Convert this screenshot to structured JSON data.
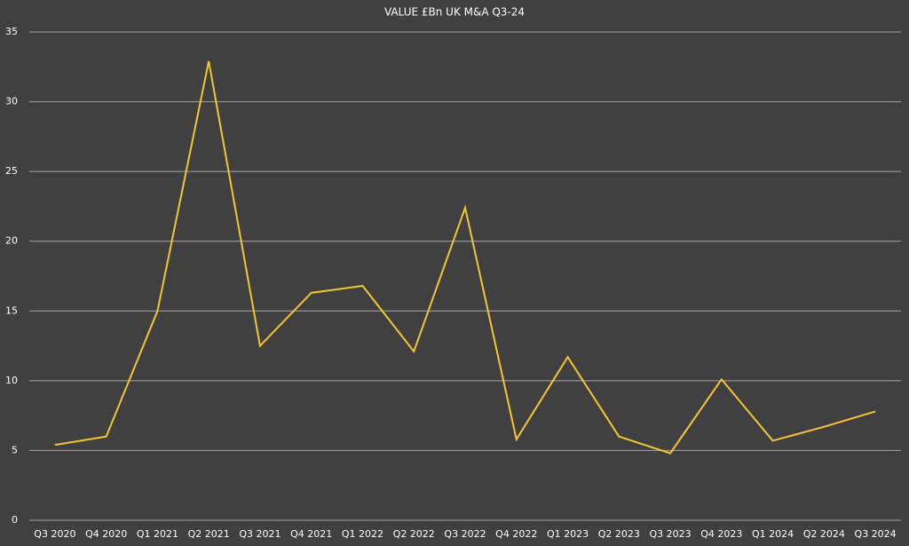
{
  "chart_data": {
    "type": "line",
    "title": "VALUE £Bn UK M&A Q3-24",
    "categories": [
      "Q3 2020",
      "Q4 2020",
      "Q1 2021",
      "Q2 2021",
      "Q3 2021",
      "Q4 2021",
      "Q1 2022",
      "Q2 2022",
      "Q3 2022",
      "Q4 2022",
      "Q1 2023",
      "Q2 2023",
      "Q3 2023",
      "Q4 2023",
      "Q1 2024",
      "Q2 2024",
      "Q3 2024"
    ],
    "values": [
      5.4,
      6.0,
      15.0,
      32.9,
      12.5,
      16.3,
      16.8,
      12.1,
      22.4,
      5.8,
      11.7,
      6.0,
      4.8,
      10.1,
      5.7,
      6.7,
      7.8
    ],
    "color": "#f5c535",
    "ylim": [
      0,
      35
    ],
    "yticks": [
      0,
      5,
      10,
      15,
      20,
      25,
      30,
      35
    ],
    "grid": true
  }
}
